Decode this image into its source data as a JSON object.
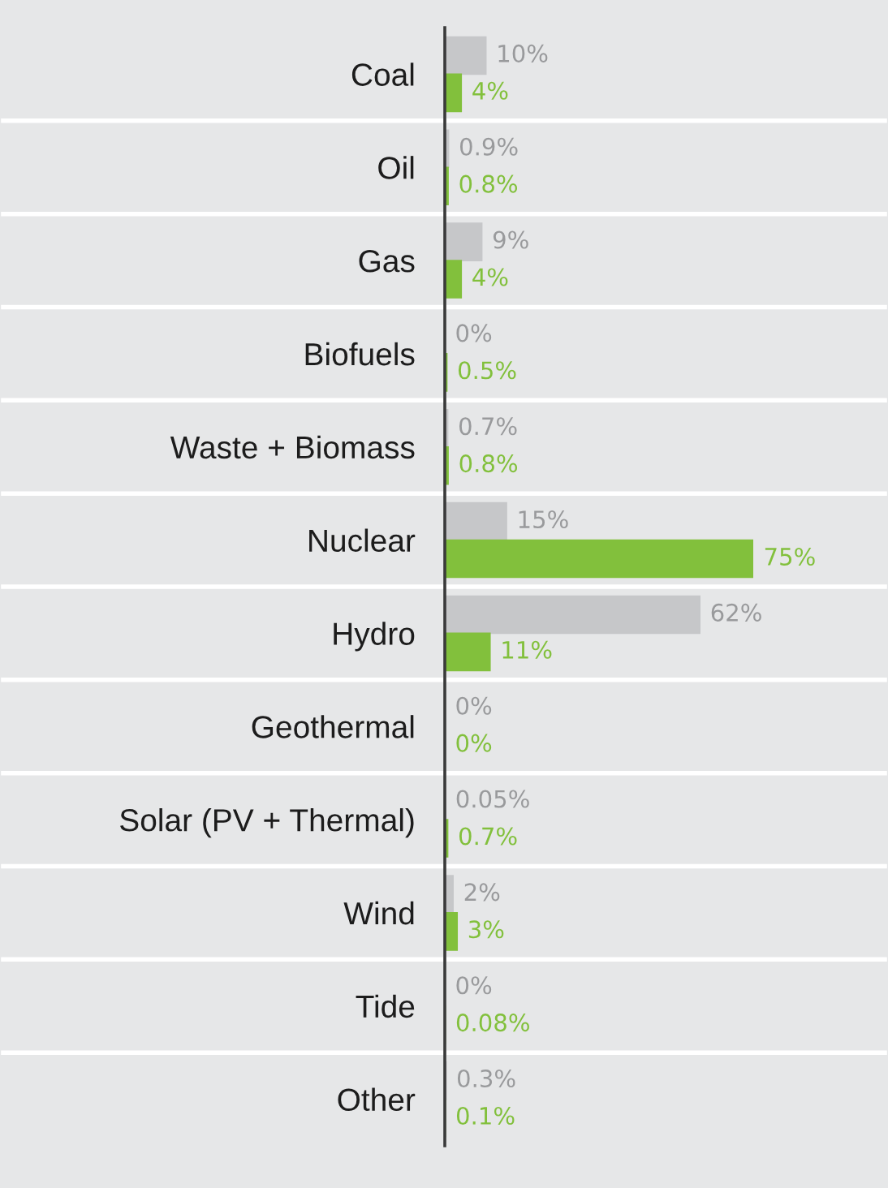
{
  "chart_data": {
    "type": "bar",
    "orientation": "horizontal",
    "categories": [
      "Coal",
      "Oil",
      "Gas",
      "Biofuels",
      "Waste + Biomass",
      "Nuclear",
      "Hydro",
      "Geothermal",
      "Solar (PV + Thermal)",
      "Wind",
      "Tide",
      "Other"
    ],
    "series": [
      {
        "color": "#c6c7c9",
        "values": [
          10,
          0.9,
          9,
          0,
          0.7,
          15,
          62,
          0,
          0.05,
          2,
          0,
          0.3
        ],
        "value_labels": [
          "10%",
          "0.9%",
          "9%",
          "0%",
          "0.7%",
          "15%",
          "62%",
          "0%",
          "0.05%",
          "2%",
          "0%",
          "0.3%"
        ]
      },
      {
        "color": "#82c03c",
        "values": [
          4,
          0.8,
          4,
          0.5,
          0.8,
          75,
          11,
          0,
          0.7,
          3,
          0.08,
          0.1
        ],
        "value_labels": [
          "4%",
          "0.8%",
          "4%",
          "0.5%",
          "0.8%",
          "75%",
          "11%",
          "0%",
          "0.7%",
          "3%",
          "0.08%",
          "0.1%"
        ]
      }
    ],
    "tick_labels": "y",
    "grid": "y"
  }
}
